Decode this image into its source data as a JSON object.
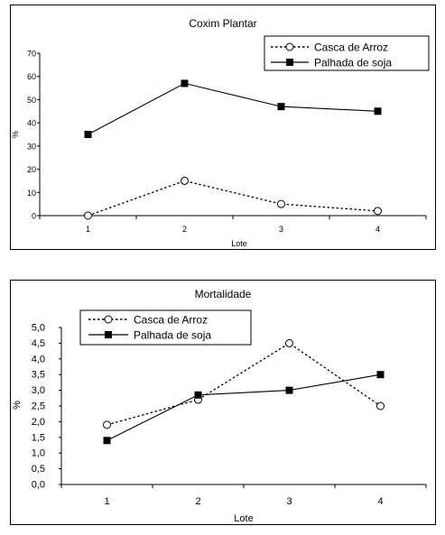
{
  "chart_data": [
    {
      "type": "line",
      "title": "Coxim Plantar",
      "xlabel": "Lote",
      "ylabel": "%",
      "categories": [
        "1",
        "2",
        "3",
        "4"
      ],
      "ylim": [
        0,
        70
      ],
      "yticks": [
        "0",
        "10",
        "20",
        "30",
        "40",
        "50",
        "60",
        "70"
      ],
      "grid": false,
      "legend": "top-right",
      "series": [
        {
          "name": "Casca de Arroz",
          "values": [
            0,
            15,
            5,
            2
          ],
          "style": "dotted",
          "marker": "open-circle"
        },
        {
          "name": "Palhada de soja",
          "values": [
            35,
            57,
            47,
            45
          ],
          "style": "solid",
          "marker": "filled-square"
        }
      ]
    },
    {
      "type": "line",
      "title": "Mortalidade",
      "xlabel": "Lote",
      "ylabel": "%",
      "categories": [
        "1",
        "2",
        "3",
        "4"
      ],
      "ylim": [
        0,
        5
      ],
      "yticks": [
        "0,0",
        "0,5",
        "1,0",
        "1,5",
        "2,0",
        "2,5",
        "3,0",
        "3,5",
        "4,0",
        "4,5",
        "5,0"
      ],
      "grid": false,
      "legend": "top-left",
      "series": [
        {
          "name": "Casca de Arroz",
          "values": [
            1.9,
            2.7,
            4.5,
            2.5
          ],
          "style": "dotted",
          "marker": "open-circle"
        },
        {
          "name": "Palhada de soja",
          "values": [
            1.4,
            2.85,
            3.0,
            3.5
          ],
          "style": "solid",
          "marker": "filled-square"
        }
      ]
    }
  ]
}
